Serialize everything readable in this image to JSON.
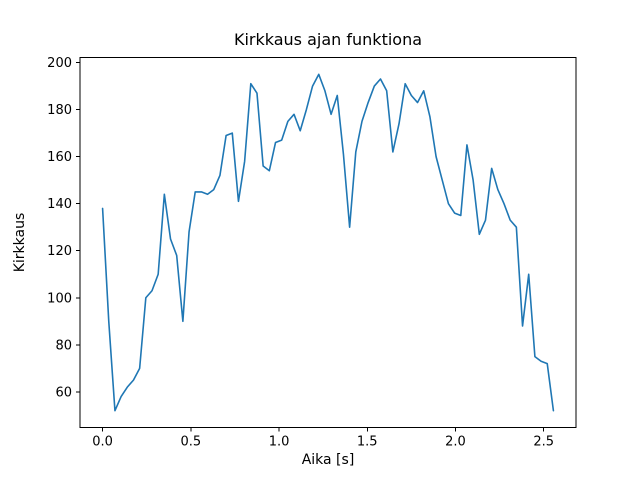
{
  "figure": {
    "background": "#ffffff"
  },
  "chart_data": {
    "type": "line",
    "title": "Kirkkaus ajan funktiona",
    "xlabel": "Aika [s]",
    "ylabel": "Kirkkaus",
    "line_color": "#1f77b4",
    "frame_color": "#000000",
    "grid": false,
    "legend": "none",
    "xlim": [
      -0.128,
      2.683
    ],
    "ylim": [
      44.85,
      202.15
    ],
    "xticks": [
      0.0,
      0.5,
      1.0,
      1.5,
      2.0,
      2.5
    ],
    "xtick_labels": [
      "0.0",
      "0.5",
      "1.0",
      "1.5",
      "2.0",
      "2.5"
    ],
    "yticks": [
      60,
      80,
      100,
      120,
      140,
      160,
      180,
      200
    ],
    "ytick_labels": [
      "60",
      "80",
      "100",
      "120",
      "140",
      "160",
      "180",
      "200"
    ],
    "x": [
      0.0,
      0.035,
      0.07,
      0.105,
      0.14,
      0.175,
      0.21,
      0.245,
      0.28,
      0.315,
      0.35,
      0.385,
      0.42,
      0.455,
      0.49,
      0.525,
      0.56,
      0.595,
      0.63,
      0.665,
      0.7,
      0.735,
      0.77,
      0.805,
      0.84,
      0.875,
      0.91,
      0.945,
      0.98,
      1.015,
      1.05,
      1.085,
      1.12,
      1.155,
      1.19,
      1.225,
      1.26,
      1.295,
      1.33,
      1.365,
      1.4,
      1.435,
      1.47,
      1.505,
      1.54,
      1.575,
      1.61,
      1.645,
      1.68,
      1.715,
      1.75,
      1.785,
      1.82,
      1.855,
      1.89,
      1.925,
      1.96,
      1.995,
      2.03,
      2.065,
      2.1,
      2.135,
      2.17,
      2.205,
      2.24,
      2.275,
      2.31,
      2.345,
      2.38,
      2.415,
      2.45,
      2.485,
      2.52,
      2.555
    ],
    "y": [
      138,
      90,
      52,
      58,
      62,
      65,
      70,
      100,
      103,
      110,
      144,
      125,
      118,
      90,
      128,
      145,
      145,
      144,
      146,
      152,
      169,
      170,
      141,
      158,
      191,
      187,
      156,
      154,
      166,
      167,
      175,
      178,
      171,
      180,
      190,
      195,
      188,
      178,
      186,
      161,
      130,
      162,
      175,
      183,
      190,
      193,
      188,
      162,
      174,
      191,
      186,
      183,
      188,
      177,
      160,
      150,
      140,
      136,
      135,
      165,
      150,
      127,
      133,
      155,
      146,
      140,
      133,
      130,
      88,
      110,
      75,
      73,
      72,
      52
    ]
  }
}
